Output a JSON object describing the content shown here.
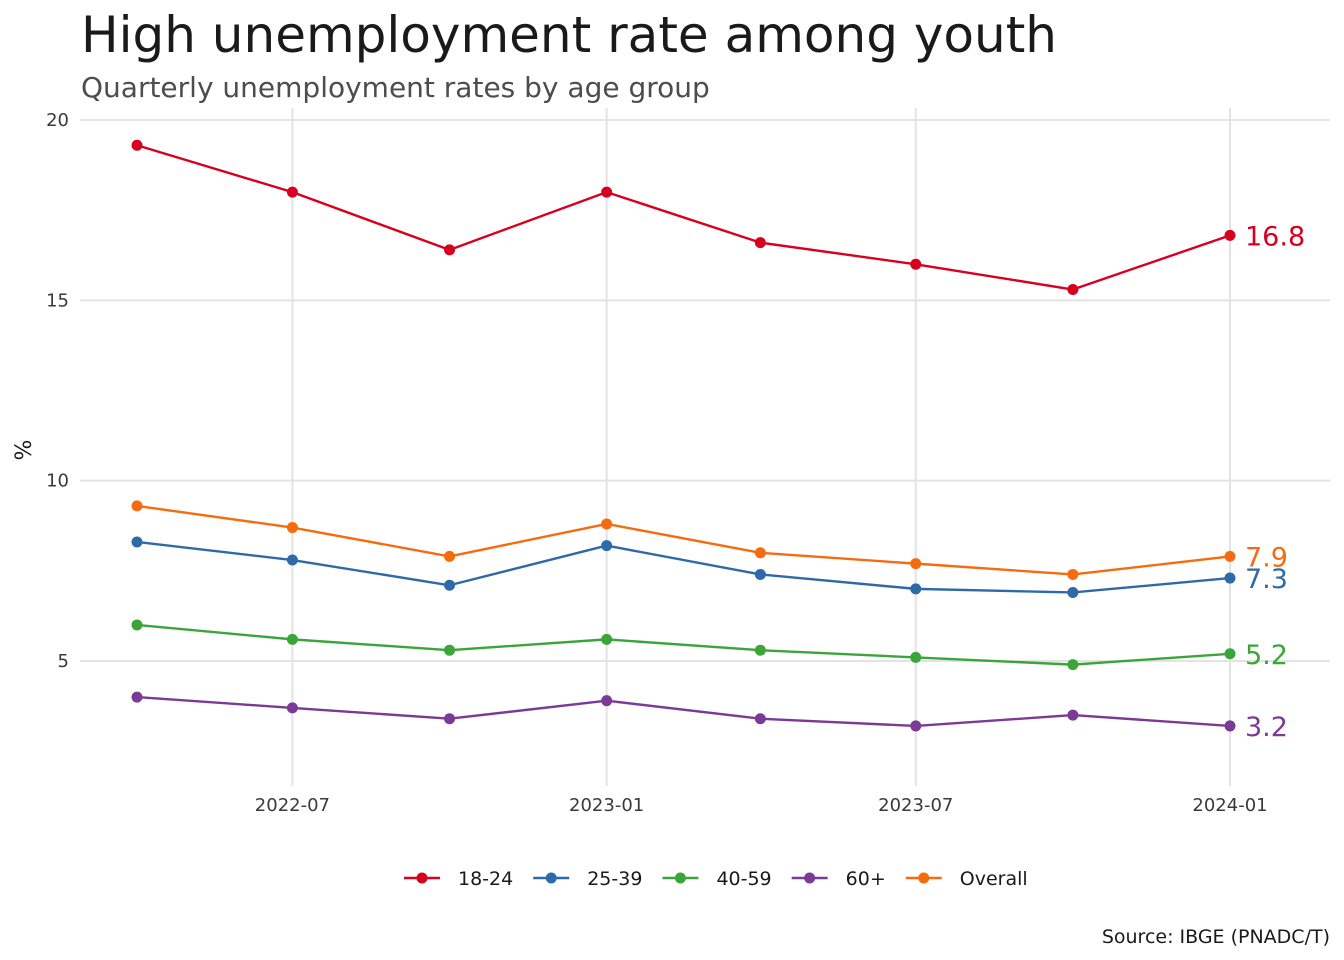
{
  "chart_data": {
    "type": "line",
    "title": "High unemployment rate among youth",
    "subtitle": "Quarterly unemployment rates by age group",
    "ylabel": "%",
    "xlabel": "",
    "caption": "Source: IBGE (PNADC/T)",
    "x": [
      "2022-04-01",
      "2022-07-01",
      "2022-10-01",
      "2023-01-01",
      "2023-04-01",
      "2023-07-01",
      "2023-10-01",
      "2024-01-01"
    ],
    "x_ticks": [
      "2022-07",
      "2023-01",
      "2023-07",
      "2024-01"
    ],
    "y_ticks": [
      5,
      10,
      15,
      20
    ],
    "ylim": [
      2.2,
      20
    ],
    "grid": true,
    "legend_position": "bottom",
    "series": [
      {
        "name": "18-24",
        "color": "#d7001f",
        "values": [
          19.3,
          18.0,
          16.4,
          18.0,
          16.6,
          16.0,
          15.3,
          16.8
        ],
        "end_label": "16.8"
      },
      {
        "name": "25-39",
        "color": "#2f6aa8",
        "values": [
          8.3,
          7.8,
          7.1,
          8.2,
          7.4,
          7.0,
          6.9,
          7.3
        ],
        "end_label": "7.3"
      },
      {
        "name": "40-59",
        "color": "#3ca53a",
        "values": [
          6.0,
          5.6,
          5.3,
          5.6,
          5.3,
          5.1,
          4.9,
          5.2
        ],
        "end_label": "5.2"
      },
      {
        "name": "60+",
        "color": "#7b3a96",
        "values": [
          4.0,
          3.7,
          3.4,
          3.9,
          3.4,
          3.2,
          3.5,
          3.2
        ],
        "end_label": "3.2"
      },
      {
        "name": "Overall",
        "color": "#f56c10",
        "values": [
          9.3,
          8.7,
          7.9,
          8.8,
          8.0,
          7.7,
          7.4,
          7.9
        ],
        "end_label": "7.9"
      }
    ]
  }
}
